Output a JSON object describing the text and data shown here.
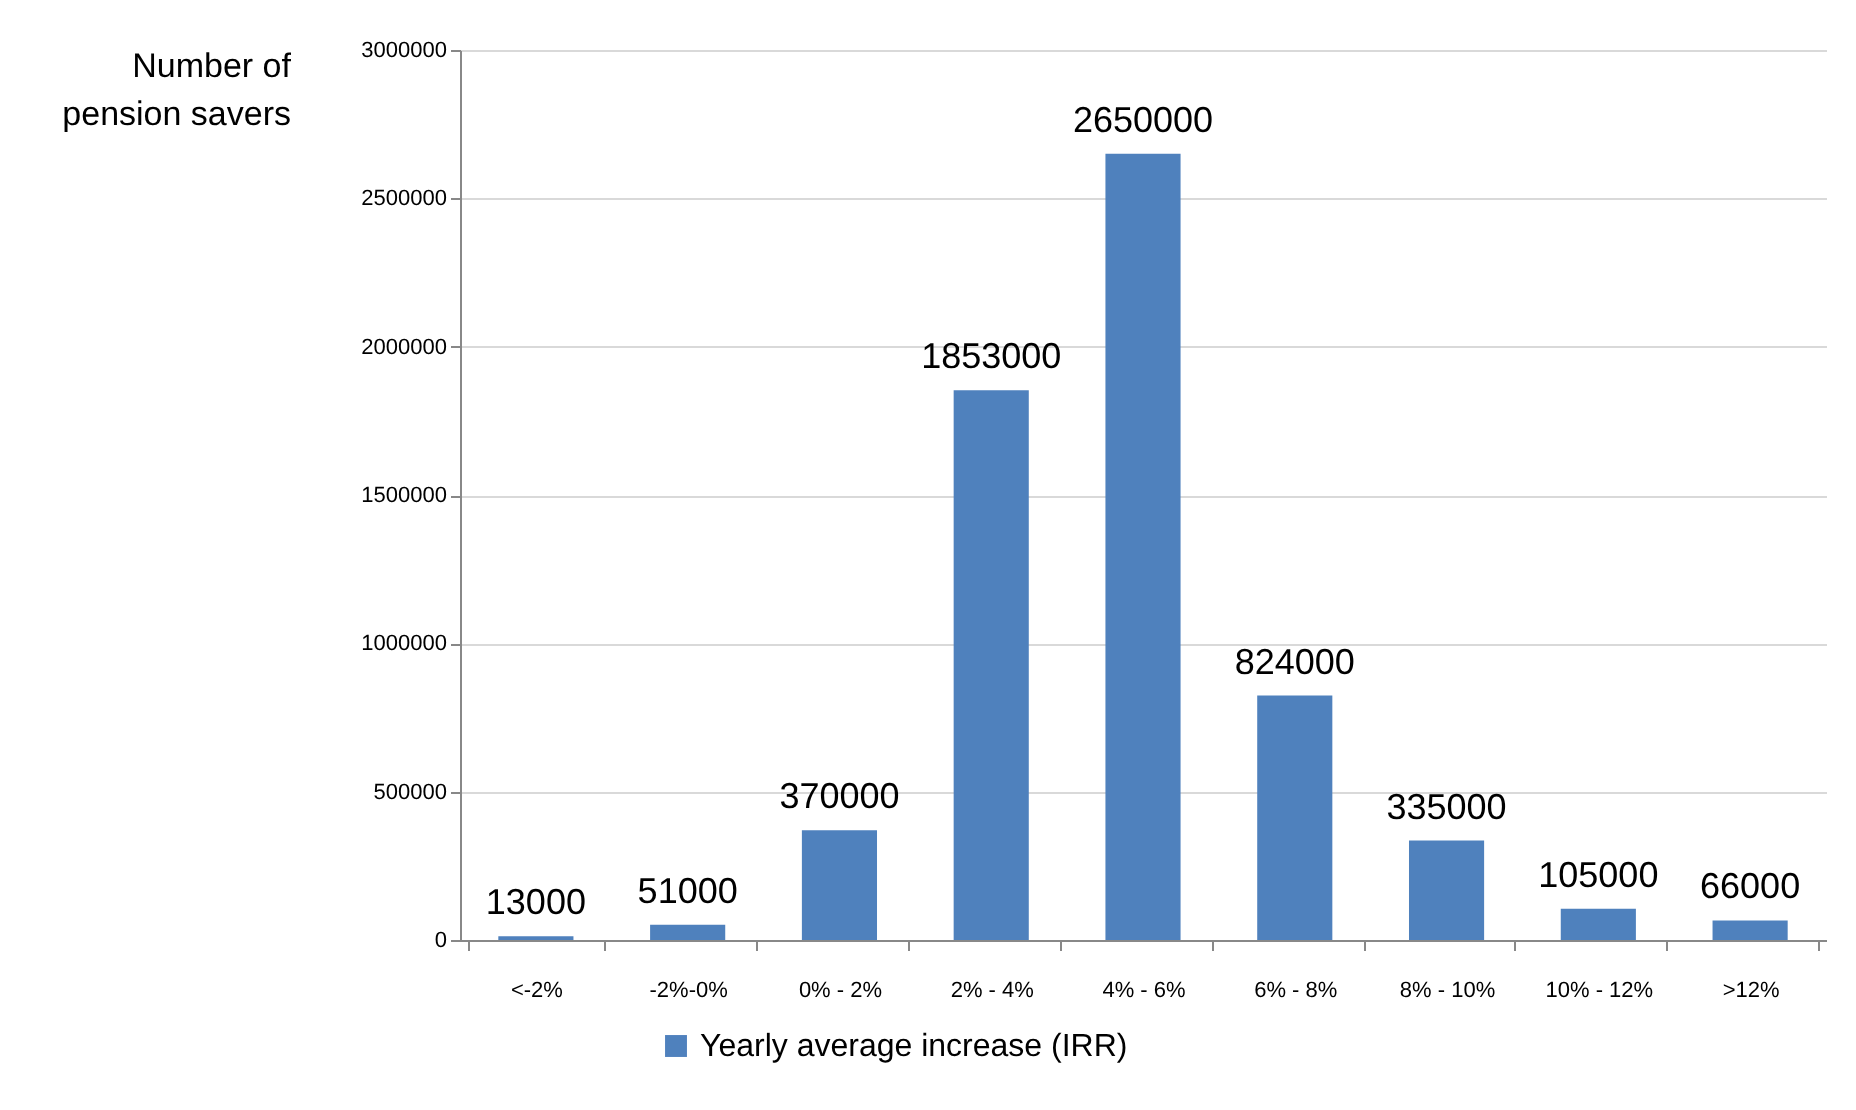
{
  "chart_data": {
    "type": "bar",
    "ylabel": "Number of pension savers",
    "categories": [
      "<-2%",
      "-2%-0%",
      "0% - 2%",
      "2% - 4%",
      "4% - 6%",
      "6% - 8%",
      "8% - 10%",
      "10% - 12%",
      ">12%"
    ],
    "series": [
      {
        "name": "Yearly average increase (IRR)",
        "color": "#4f81bd",
        "values": [
          13000,
          51000,
          370000,
          1853000,
          2650000,
          824000,
          335000,
          105000,
          66000
        ]
      }
    ],
    "ylim": [
      0,
      3000000
    ],
    "yticks": [
      0,
      500000,
      1000000,
      1500000,
      2000000,
      2500000,
      3000000
    ],
    "grid": "y",
    "data_labels": true,
    "legend": "bottom"
  }
}
